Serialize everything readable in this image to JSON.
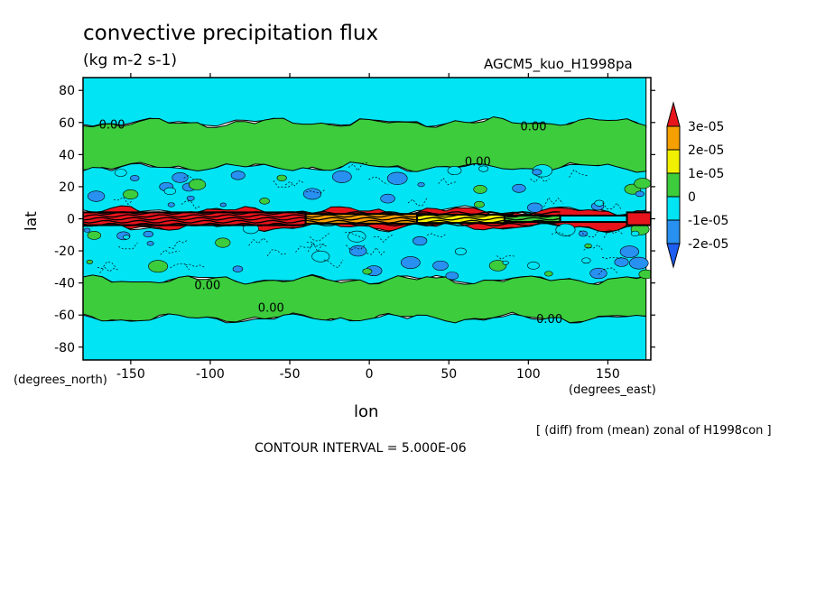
{
  "header": {
    "title": "convective precipitation flux",
    "units": "(kg m-2 s-1)",
    "model": "AGCM5_kuo_H1998pa"
  },
  "footer": {
    "note": "[ (diff) from (mean) zonal of H1998con ]",
    "contour_interval": "CONTOUR INTERVAL = 5.000E-06"
  },
  "chart_data": {
    "type": "heatmap",
    "title": "convective precipitation flux",
    "subtitle": "(kg m-2 s-1)",
    "xlabel": "lon",
    "ylabel": "lat",
    "x_units": "(degrees_east)",
    "y_units": "(degrees_north)",
    "xlim": [
      -180,
      177
    ],
    "ylim": [
      -88,
      88
    ],
    "xticks": [
      -150,
      -100,
      -50,
      0,
      50,
      100,
      150
    ],
    "yticks": [
      80,
      60,
      40,
      20,
      0,
      -20,
      -40,
      -60,
      -80
    ],
    "colorbar": {
      "levels": [
        "3e-05",
        "2e-05",
        "1e-05",
        "0",
        "-1e-05",
        "-2e-05"
      ],
      "colors": [
        "#e8141c",
        "#f5a000",
        "#f0f000",
        "#3ccc3c",
        "#00e4f4",
        "#2890f0",
        "#1e5ef0"
      ]
    },
    "contour_labels": [
      {
        "lon": -170,
        "lat": 59,
        "text": "0.00"
      },
      {
        "lon": 95,
        "lat": 58,
        "text": "0.00"
      },
      {
        "lon": 60,
        "lat": 36,
        "text": "0.00"
      },
      {
        "lon": -110,
        "lat": -41,
        "text": "0.00"
      },
      {
        "lon": -70,
        "lat": -55,
        "text": "0.00"
      },
      {
        "lon": 105,
        "lat": -62,
        "text": "0.00"
      }
    ],
    "bands": [
      {
        "lat_from": 88,
        "lat_to": 60,
        "value": -5e-06,
        "color": "#00e4f4"
      },
      {
        "lat_from": 60,
        "lat_to": 32,
        "value": 0,
        "color": "#3ccc3c"
      },
      {
        "lat_from": 32,
        "lat_to": 5,
        "value": -5e-06,
        "color": "#00e4f4"
      },
      {
        "lat_from": 5,
        "lat_to": -5,
        "value": 3e-05,
        "color": "#e8141c"
      },
      {
        "lat_from": -5,
        "lat_to": -38,
        "value": -5e-06,
        "color": "#00e4f4"
      },
      {
        "lat_from": -38,
        "lat_to": -62,
        "value": 0,
        "color": "#3ccc3c"
      },
      {
        "lat_from": -62,
        "lat_to": -88,
        "value": -5e-06,
        "color": "#00e4f4"
      }
    ]
  }
}
